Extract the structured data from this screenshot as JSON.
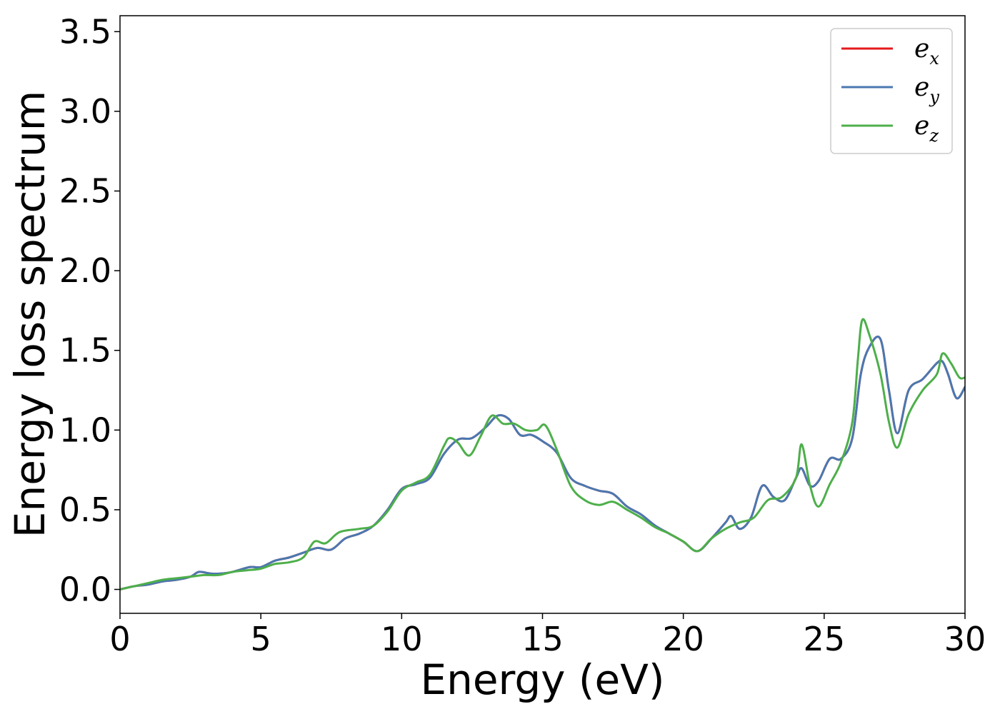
{
  "chart_data": {
    "type": "line",
    "title": "",
    "xlabel": "Energy (eV)",
    "ylabel": "Energy loss spectrum",
    "xlim": [
      0,
      30
    ],
    "ylim": [
      -0.15,
      3.6
    ],
    "xticks": [
      0,
      5,
      10,
      15,
      20,
      25,
      30
    ],
    "xtick_labels": [
      "0",
      "5",
      "10",
      "15",
      "20",
      "25",
      "30"
    ],
    "yticks": [
      0.0,
      0.5,
      1.0,
      1.5,
      2.0,
      2.5,
      3.0,
      3.5
    ],
    "ytick_labels": [
      "0.0",
      "0.5",
      "1.0",
      "1.5",
      "2.0",
      "2.5",
      "3.0",
      "3.5"
    ],
    "grid": false,
    "legend_position": "top-right",
    "series": [
      {
        "name": "e",
        "sub": "x",
        "color": "#e41a1c",
        "x": [
          0,
          0.5,
          1,
          1.5,
          2,
          2.5,
          2.8,
          3.2,
          3.6,
          4,
          4.6,
          5,
          5.5,
          6,
          6.5,
          7,
          7.5,
          8,
          8.5,
          9,
          9.5,
          10,
          10.5,
          11,
          11.5,
          12,
          12.5,
          13,
          13.4,
          13.8,
          14.2,
          14.6,
          15,
          15.5,
          16,
          16.5,
          17,
          17.5,
          18,
          18.5,
          19,
          19.5,
          20,
          20.5,
          21,
          21.5,
          21.7,
          22,
          22.4,
          22.8,
          23.2,
          23.6,
          24,
          24.2,
          24.5,
          24.8,
          25.2,
          25.6,
          26,
          26.3,
          26.6,
          27,
          27.3,
          27.6,
          28,
          28.5,
          29,
          29.2,
          29.4,
          29.7,
          30
        ],
        "y": [
          0,
          0.02,
          0.03,
          0.05,
          0.06,
          0.08,
          0.11,
          0.1,
          0.1,
          0.11,
          0.14,
          0.14,
          0.18,
          0.2,
          0.23,
          0.26,
          0.25,
          0.32,
          0.35,
          0.4,
          0.5,
          0.63,
          0.66,
          0.7,
          0.85,
          0.94,
          0.95,
          1.02,
          1.09,
          1.07,
          0.97,
          0.97,
          0.93,
          0.86,
          0.7,
          0.65,
          0.62,
          0.6,
          0.52,
          0.47,
          0.4,
          0.35,
          0.3,
          0.24,
          0.32,
          0.42,
          0.46,
          0.38,
          0.45,
          0.65,
          0.58,
          0.56,
          0.7,
          0.76,
          0.65,
          0.68,
          0.82,
          0.82,
          0.95,
          1.35,
          1.52,
          1.57,
          1.25,
          0.98,
          1.25,
          1.32,
          1.42,
          1.43,
          1.35,
          1.2,
          1.27
        ]
      },
      {
        "name": "e",
        "sub": "y",
        "color": "#4a78b0",
        "x": [
          0,
          0.5,
          1,
          1.5,
          2,
          2.5,
          2.8,
          3.2,
          3.6,
          4,
          4.6,
          5,
          5.5,
          6,
          6.5,
          7,
          7.5,
          8,
          8.5,
          9,
          9.5,
          10,
          10.5,
          11,
          11.5,
          12,
          12.5,
          13,
          13.4,
          13.8,
          14.2,
          14.6,
          15,
          15.5,
          16,
          16.5,
          17,
          17.5,
          18,
          18.5,
          19,
          19.5,
          20,
          20.5,
          21,
          21.5,
          21.7,
          22,
          22.4,
          22.8,
          23.2,
          23.6,
          24,
          24.2,
          24.5,
          24.8,
          25.2,
          25.6,
          26,
          26.3,
          26.6,
          27,
          27.3,
          27.6,
          28,
          28.5,
          29,
          29.2,
          29.4,
          29.7,
          30
        ],
        "y": [
          0,
          0.02,
          0.03,
          0.05,
          0.06,
          0.08,
          0.11,
          0.1,
          0.1,
          0.11,
          0.14,
          0.14,
          0.18,
          0.2,
          0.23,
          0.26,
          0.25,
          0.32,
          0.35,
          0.4,
          0.5,
          0.63,
          0.66,
          0.7,
          0.85,
          0.94,
          0.95,
          1.02,
          1.09,
          1.07,
          0.97,
          0.97,
          0.93,
          0.86,
          0.7,
          0.65,
          0.62,
          0.6,
          0.52,
          0.47,
          0.4,
          0.35,
          0.3,
          0.24,
          0.32,
          0.42,
          0.46,
          0.38,
          0.45,
          0.65,
          0.58,
          0.56,
          0.7,
          0.76,
          0.65,
          0.68,
          0.82,
          0.82,
          0.95,
          1.35,
          1.52,
          1.57,
          1.25,
          0.98,
          1.25,
          1.32,
          1.42,
          1.43,
          1.35,
          1.2,
          1.27
        ]
      },
      {
        "name": "e",
        "sub": "z",
        "color": "#4daf4a",
        "x": [
          0,
          0.5,
          1,
          1.5,
          2,
          2.5,
          3,
          3.5,
          4,
          4.5,
          5,
          5.5,
          6,
          6.5,
          6.9,
          7.3,
          7.8,
          8.5,
          9,
          9.5,
          10,
          10.5,
          11,
          11.5,
          11.7,
          12,
          12.4,
          12.8,
          13.2,
          13.6,
          14,
          14.4,
          14.8,
          15.1,
          15.5,
          16,
          16.5,
          17,
          17.5,
          18,
          18.5,
          19,
          19.5,
          20,
          20.5,
          21,
          21.5,
          22,
          22.5,
          23,
          23.5,
          24,
          24.2,
          24.5,
          24.8,
          25.2,
          25.6,
          26,
          26.2,
          26.35,
          26.6,
          27,
          27.3,
          27.6,
          28,
          28.5,
          29,
          29.2,
          29.5,
          29.8,
          30
        ],
        "y": [
          0,
          0.02,
          0.04,
          0.06,
          0.07,
          0.08,
          0.09,
          0.09,
          0.11,
          0.12,
          0.13,
          0.16,
          0.17,
          0.2,
          0.3,
          0.29,
          0.36,
          0.38,
          0.4,
          0.49,
          0.62,
          0.67,
          0.72,
          0.9,
          0.95,
          0.92,
          0.84,
          0.96,
          1.09,
          1.04,
          1.04,
          1.0,
          1.0,
          1.03,
          0.88,
          0.65,
          0.56,
          0.53,
          0.55,
          0.5,
          0.45,
          0.39,
          0.35,
          0.3,
          0.24,
          0.32,
          0.38,
          0.42,
          0.45,
          0.56,
          0.58,
          0.7,
          0.91,
          0.65,
          0.52,
          0.66,
          0.8,
          1.05,
          1.45,
          1.69,
          1.6,
          1.35,
          1.05,
          0.89,
          1.1,
          1.25,
          1.35,
          1.48,
          1.42,
          1.33,
          1.33
        ]
      }
    ]
  }
}
